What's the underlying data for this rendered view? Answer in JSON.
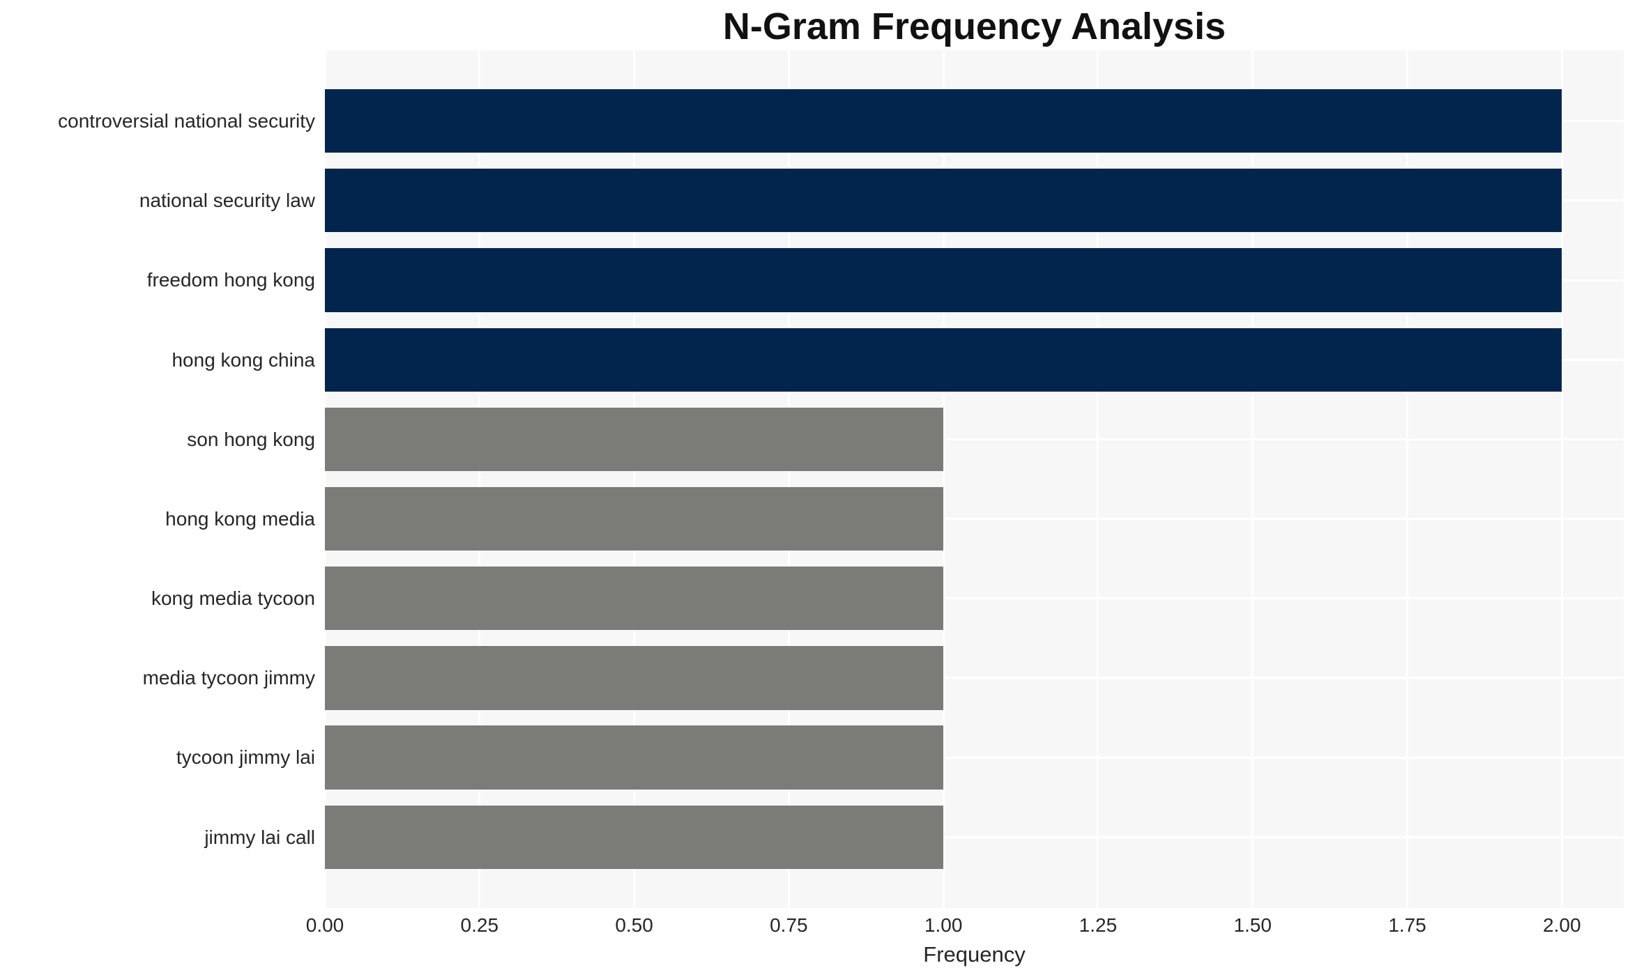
{
  "chart_data": {
    "type": "bar",
    "orientation": "horizontal",
    "title": "N-Gram Frequency Analysis",
    "xlabel": "Frequency",
    "ylabel": "",
    "categories": [
      "controversial national security",
      "national security law",
      "freedom hong kong",
      "hong kong china",
      "son hong kong",
      "hong kong media",
      "kong media tycoon",
      "media tycoon jimmy",
      "tycoon jimmy lai",
      "jimmy lai call"
    ],
    "values": [
      2,
      2,
      2,
      2,
      1,
      1,
      1,
      1,
      1,
      1
    ],
    "bar_colors": [
      "navy",
      "navy",
      "navy",
      "navy",
      "gray",
      "gray",
      "gray",
      "gray",
      "gray",
      "gray"
    ],
    "xticks": [
      0,
      0.25,
      0.5,
      0.75,
      1,
      1.25,
      1.5,
      1.75,
      2
    ],
    "xtick_labels": [
      "0.00",
      "0.25",
      "0.50",
      "0.75",
      "1.00",
      "1.25",
      "1.50",
      "1.75",
      "2.00"
    ],
    "xlim": [
      0,
      2.1
    ],
    "grid": true,
    "legend": false,
    "colors": {
      "navy": "#02254e",
      "gray": "#7b7b77",
      "plot_background": "#f7f7f7",
      "gridline": "#ffffff",
      "title_text": "#111111",
      "axis_text": "#262626"
    }
  }
}
